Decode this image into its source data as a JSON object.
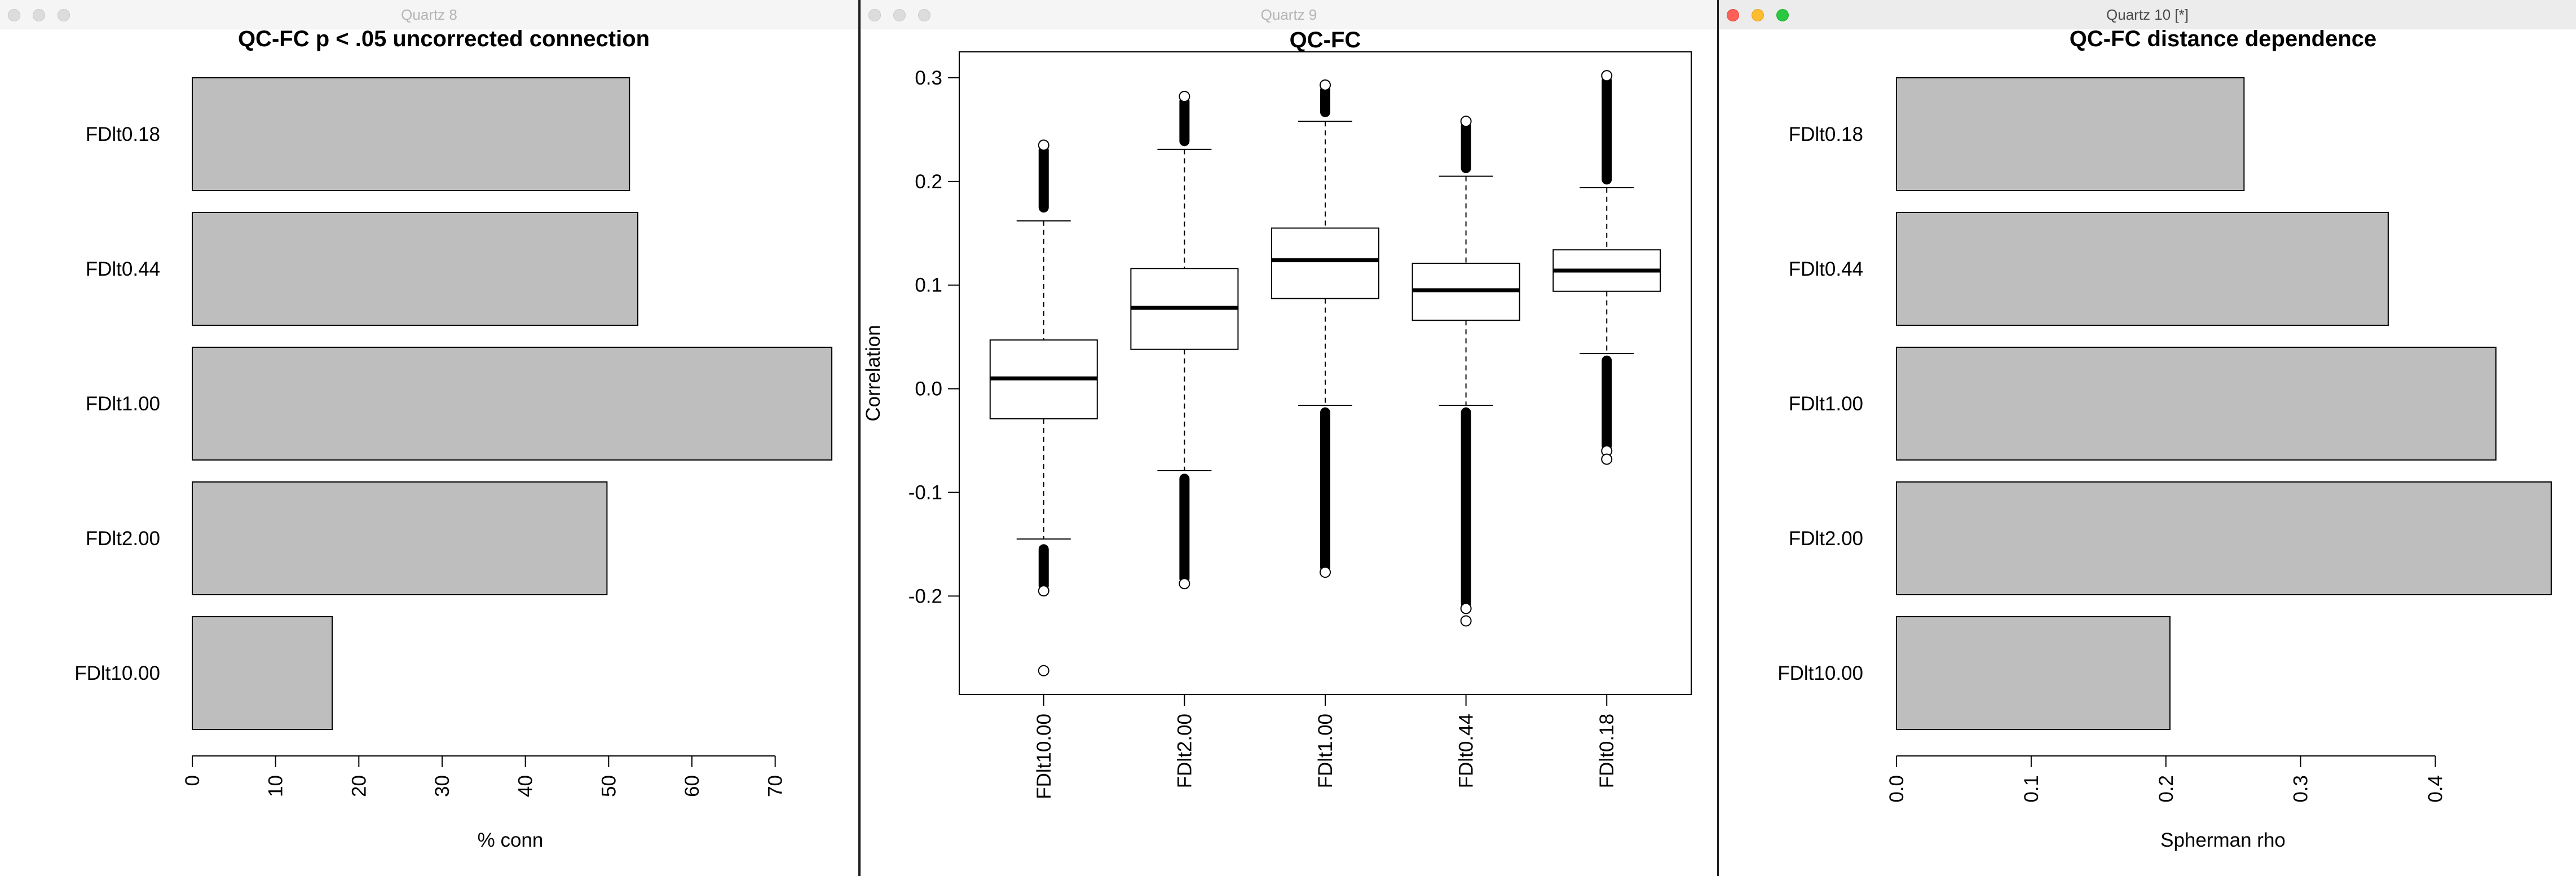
{
  "windows": [
    {
      "title": "Quartz 8",
      "active": false,
      "chart_data": {
        "type": "bar",
        "orientation": "horizontal",
        "title": "QC-FC p < .05 uncorrected connection",
        "xlabel": "% conn",
        "ylabel": "",
        "categories": [
          "FDlt0.18",
          "FDlt0.44",
          "FDlt1.00",
          "FDlt2.00",
          "FDlt10.00"
        ],
        "values": [
          52.5,
          53.5,
          76.8,
          49.8,
          16.8
        ],
        "xticks": [
          "0",
          "10",
          "20",
          "30",
          "40",
          "50",
          "60",
          "70"
        ],
        "xlim": [
          0,
          77
        ],
        "bar_color": "#bebebe"
      }
    },
    {
      "title": "Quartz 9",
      "active": false,
      "chart_data": {
        "type": "box",
        "title": "QC-FC",
        "ylabel": "Correlation",
        "xlabel": "",
        "categories": [
          "FDlt10.00",
          "FDlt2.00",
          "FDlt1.00",
          "FDlt0.44",
          "FDlt0.18"
        ],
        "boxes": [
          {
            "whisker_low": -0.145,
            "q1": -0.029,
            "median": 0.01,
            "q3": 0.047,
            "whisker_high": 0.162,
            "out_low": [
              -0.15,
              -0.195
            ],
            "out_high": [
              0.17,
              0.235
            ],
            "extreme_low": [
              -0.272
            ],
            "extreme_high": []
          },
          {
            "whisker_low": -0.079,
            "q1": 0.038,
            "median": 0.078,
            "q3": 0.116,
            "whisker_high": 0.231,
            "out_low": [
              -0.082,
              -0.188
            ],
            "out_high": [
              0.234,
              0.282
            ],
            "extreme_low": [],
            "extreme_high": []
          },
          {
            "whisker_low": -0.016,
            "q1": 0.087,
            "median": 0.124,
            "q3": 0.155,
            "whisker_high": 0.258,
            "out_low": [
              -0.018,
              -0.177
            ],
            "out_high": [
              0.262,
              0.293
            ],
            "extreme_low": [],
            "extreme_high": []
          },
          {
            "whisker_low": -0.016,
            "q1": 0.066,
            "median": 0.095,
            "q3": 0.121,
            "whisker_high": 0.205,
            "out_low": [
              -0.018,
              -0.212
            ],
            "out_high": [
              0.208,
              0.258
            ],
            "extreme_low": [
              -0.224
            ],
            "extreme_high": []
          },
          {
            "whisker_low": 0.034,
            "q1": 0.094,
            "median": 0.114,
            "q3": 0.134,
            "whisker_high": 0.194,
            "out_low": [
              0.032,
              -0.06
            ],
            "out_high": [
              0.197,
              0.302
            ],
            "extreme_low": [
              -0.068
            ],
            "extreme_high": []
          }
        ],
        "yticks": [
          -0.2,
          -0.1,
          0.0,
          0.1,
          0.2,
          0.3
        ],
        "ytick_labels": [
          "-0.2",
          "-0.1",
          "0.0",
          "0.1",
          "0.2",
          "0.3"
        ],
        "ylim": [
          -0.295,
          0.325
        ]
      }
    },
    {
      "title": "Quartz 10 [*]",
      "active": true,
      "traffic_lights": {
        "close": "#fe5f57",
        "minimize": "#febc2e",
        "zoom": "#28c840"
      },
      "chart_data": {
        "type": "bar",
        "orientation": "horizontal",
        "title": "QC-FC distance dependence",
        "xlabel": "Spherman rho",
        "ylabel": "",
        "categories": [
          "FDlt0.18",
          "FDlt0.44",
          "FDlt1.00",
          "FDlt2.00",
          "FDlt10.00"
        ],
        "values": [
          0.258,
          0.365,
          0.445,
          0.486,
          0.203
        ],
        "xticks": [
          "0.0",
          "0.1",
          "0.2",
          "0.3",
          "0.4"
        ],
        "xlim": [
          0,
          0.486
        ],
        "bar_color": "#bebebe"
      }
    }
  ]
}
